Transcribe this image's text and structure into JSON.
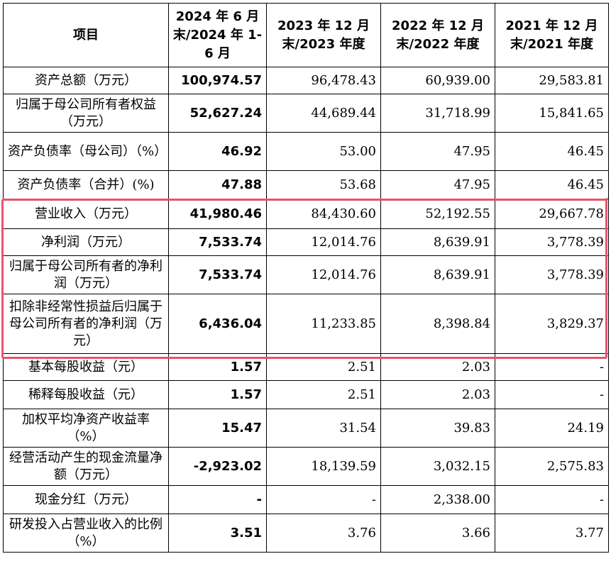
{
  "table": {
    "headers": [
      "项目",
      "2024 年 6 月末/2024 年 1-6 月",
      "2023 年 12 月末/2023 年度",
      "2022 年 12 月末/2022 年度",
      "2021 年 12 月末/2021 年度"
    ],
    "rows": [
      {
        "label": "资产总额（万元）",
        "v2024": "100,974.57",
        "v2023": "96,478.43",
        "v2022": "60,939.00",
        "v2021": "29,583.81"
      },
      {
        "label": "归属于母公司所有者权益（万元）",
        "v2024": "52,627.24",
        "v2023": "44,689.44",
        "v2022": "31,718.99",
        "v2021": "15,841.65"
      },
      {
        "label": "资产负债率（母公司）（%）",
        "v2024": "46.92",
        "v2023": "53.00",
        "v2022": "47.95",
        "v2021": "46.45"
      },
      {
        "label": "资产负债率（合并）(%)",
        "v2024": "47.88",
        "v2023": "53.68",
        "v2022": "47.95",
        "v2021": "46.45"
      },
      {
        "label": "营业收入（万元）",
        "v2024": "41,980.46",
        "v2023": "84,430.60",
        "v2022": "52,192.55",
        "v2021": "29,667.78"
      },
      {
        "label": "净利润（万元）",
        "v2024": "7,533.74",
        "v2023": "12,014.76",
        "v2022": "8,639.91",
        "v2021": "3,778.39"
      },
      {
        "label": "归属于母公司所有者的净利润（万元）",
        "v2024": "7,533.74",
        "v2023": "12,014.76",
        "v2022": "8,639.91",
        "v2021": "3,778.39"
      },
      {
        "label": "扣除非经常性损益后归属于母公司所有者的净利润（万元）",
        "v2024": "6,436.04",
        "v2023": "11,233.85",
        "v2022": "8,398.84",
        "v2021": "3,829.37"
      },
      {
        "label": "基本每股收益（元）",
        "v2024": "1.57",
        "v2023": "2.51",
        "v2022": "2.03",
        "v2021": "-"
      },
      {
        "label": "稀释每股收益（元）",
        "v2024": "1.57",
        "v2023": "2.51",
        "v2022": "2.03",
        "v2021": "-"
      },
      {
        "label": "加权平均净资产收益率（%）",
        "v2024": "15.47",
        "v2023": "31.54",
        "v2022": "39.83",
        "v2021": "24.19"
      },
      {
        "label": "经营活动产生的现金流量净额（万元）",
        "v2024": "-2,923.02",
        "v2023": "18,139.59",
        "v2022": "3,032.15",
        "v2021": "2,575.83"
      },
      {
        "label": "现金分红（万元）",
        "v2024": "-",
        "v2023": "-",
        "v2022": "2,338.00",
        "v2021": "-"
      },
      {
        "label": "研发投入占营业收入的比例（%）",
        "v2024": "3.51",
        "v2023": "3.76",
        "v2022": "3.66",
        "v2021": "3.77"
      }
    ]
  },
  "colors": {
    "highlight": "#e8536a"
  }
}
